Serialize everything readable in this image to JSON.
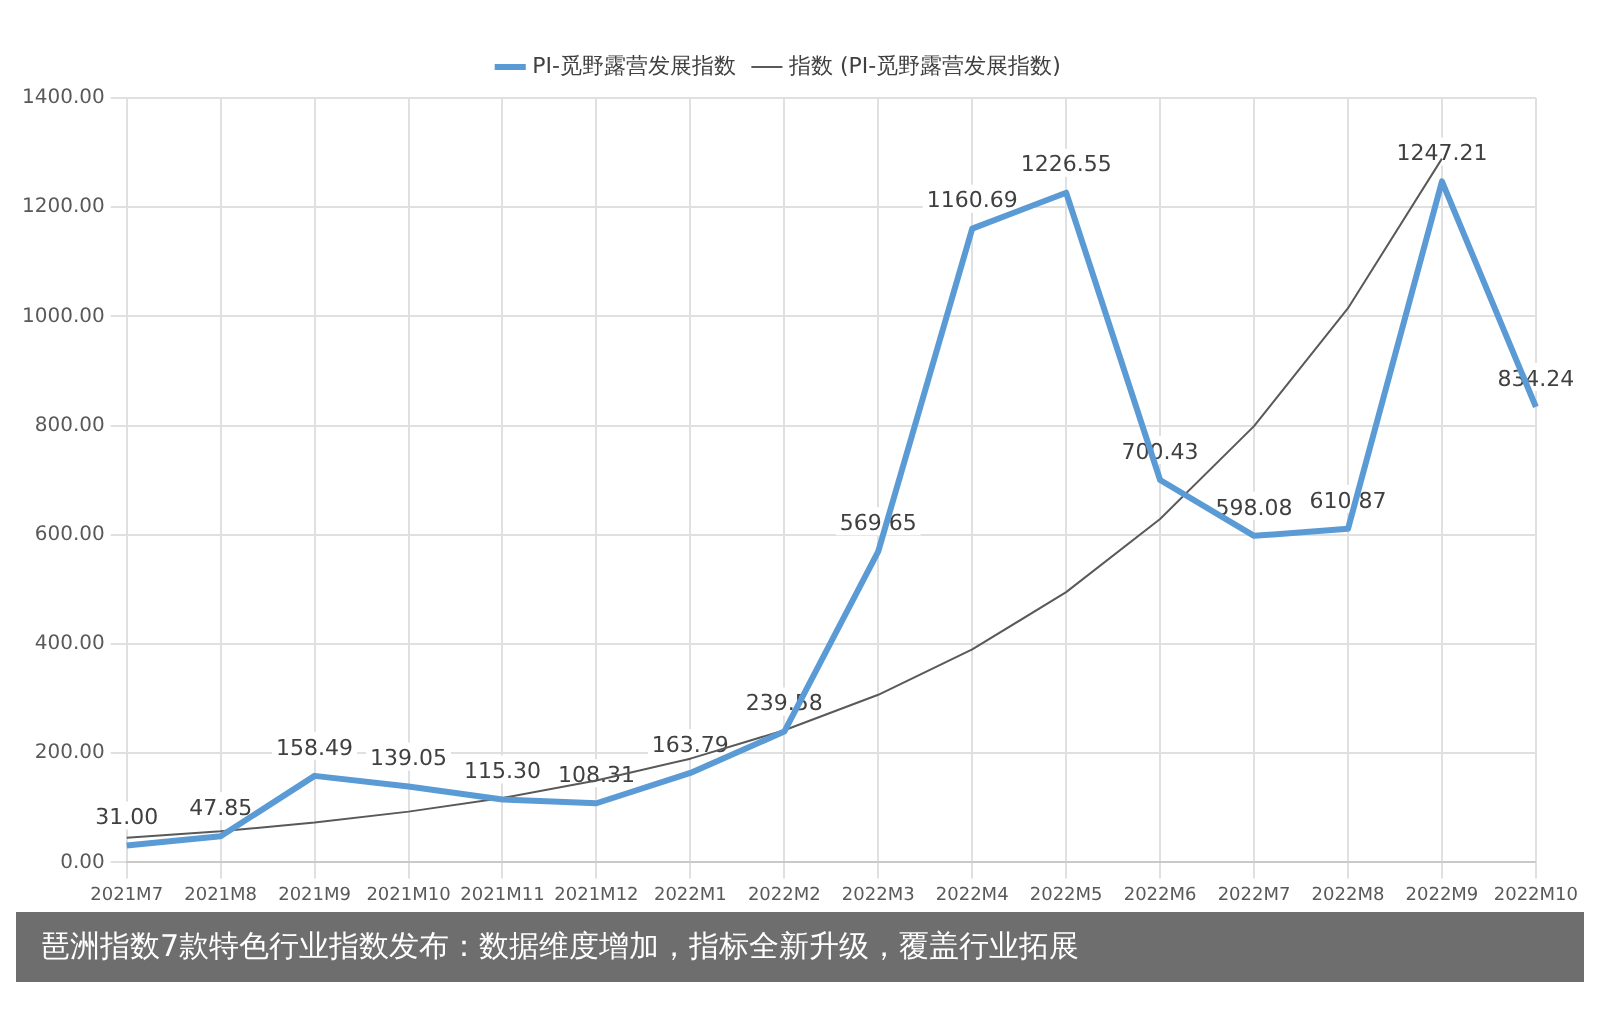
{
  "chart_data": {
    "type": "line",
    "categories": [
      "2021M7",
      "2021M8",
      "2021M9",
      "2021M10",
      "2021M11",
      "2021M12",
      "2022M1",
      "2022M2",
      "2022M3",
      "2022M4",
      "2022M5",
      "2022M6",
      "2022M7",
      "2022M8",
      "2022M9",
      "2022M10"
    ],
    "series": [
      {
        "name": "PI-觅野露营发展指数",
        "color": "#5b9bd5",
        "values": [
          31.0,
          47.85,
          158.49,
          139.05,
          115.3,
          108.31,
          163.79,
          239.58,
          569.65,
          1160.69,
          1226.55,
          700.43,
          598.08,
          610.87,
          1247.21,
          834.24
        ],
        "value_labels": [
          "31.00",
          "47.85",
          "158.49",
          "139.05",
          "115.30",
          "108.31",
          "163.79",
          "239.58",
          "569.65",
          "1160.69",
          "1226.55",
          "700.43",
          "598.08",
          "610.87",
          "1247.21",
          "834.24"
        ]
      },
      {
        "name": "指数 (PI-觅野露营发展指数)",
        "color": "#595959",
        "type": "line",
        "values": [
          45,
          57,
          73,
          93,
          118,
          150,
          190,
          242,
          307,
          390,
          495,
          629,
          799,
          1015,
          1289,
          null
        ]
      }
    ],
    "ylim": [
      0,
      1400
    ],
    "yticks": [
      {
        "value": 0,
        "label": "0.00"
      },
      {
        "value": 200,
        "label": "200.00"
      },
      {
        "value": 400,
        "label": "400.00"
      },
      {
        "value": 600,
        "label": "600.00"
      },
      {
        "value": 800,
        "label": "800.00"
      },
      {
        "value": 1000,
        "label": "1000.00"
      },
      {
        "value": 1200,
        "label": "1200.00"
      },
      {
        "value": 1400,
        "label": "1400.00"
      }
    ],
    "grid": true,
    "legend": "top",
    "marker": "none",
    "line_style": "solid",
    "annotations": [
      "琶洲指数7款特色行业指数发布：数据维度增加，指标全新升级，覆盖行业拓展"
    ]
  }
}
